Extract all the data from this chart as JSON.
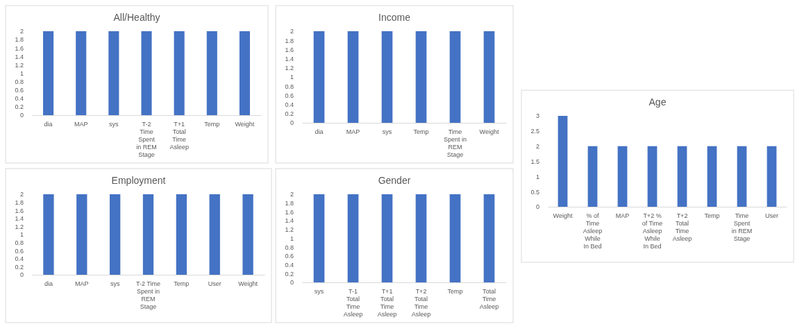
{
  "chart_data": [
    {
      "type": "bar",
      "title": "All/Healthy",
      "categories": [
        "dia",
        "MAP",
        "sys",
        "T-2 Time Spent in REM Stage",
        "T+1 Total Time Asleep",
        "Temp",
        "Weight"
      ],
      "values": [
        2,
        2,
        2,
        2,
        2,
        2,
        2
      ],
      "color": "#4472c4",
      "ylim": [
        0,
        2
      ],
      "yticks": [
        0,
        0.2,
        0.4,
        0.6,
        0.8,
        1,
        1.2,
        1.4,
        1.6,
        1.8,
        2
      ]
    },
    {
      "type": "bar",
      "title": "Income",
      "categories": [
        "dia",
        "MAP",
        "sys",
        "Temp",
        "Time Spent in REM Stage",
        "Weight"
      ],
      "values": [
        2,
        2,
        2,
        2,
        2,
        2
      ],
      "color": "#4472c4",
      "ylim": [
        0,
        2
      ],
      "yticks": [
        0,
        0.2,
        0.4,
        0.6,
        0.8,
        1,
        1.2,
        1.4,
        1.6,
        1.8,
        2
      ]
    },
    {
      "type": "bar",
      "title": "Employment",
      "categories": [
        "dia",
        "MAP",
        "sys",
        "T-2 Time Spent in REM Stage",
        "Temp",
        "User",
        "Weight"
      ],
      "values": [
        2,
        2,
        2,
        2,
        2,
        2,
        2
      ],
      "color": "#4472c4",
      "ylim": [
        0,
        2
      ],
      "yticks": [
        0,
        0.2,
        0.4,
        0.6,
        0.8,
        1,
        1.2,
        1.4,
        1.6,
        1.8,
        2
      ]
    },
    {
      "type": "bar",
      "title": "Gender",
      "categories": [
        "sys",
        "T-1 Total Time Asleep",
        "T+1 Total Time Asleep",
        "T+2 Total Time Asleep",
        "Temp",
        "Total Time Asleep"
      ],
      "values": [
        2,
        2,
        2,
        2,
        2,
        2
      ],
      "color": "#4472c4",
      "ylim": [
        0,
        2
      ],
      "yticks": [
        0,
        0.2,
        0.4,
        0.6,
        0.8,
        1,
        1.2,
        1.4,
        1.6,
        1.8,
        2
      ]
    },
    {
      "type": "bar",
      "title": "Age",
      "categories": [
        "Weight",
        "% of Time Asleep While In Bed",
        "MAP",
        "T+2 % of Time Asleep While In Bed",
        "T+2 Total Time Asleep",
        "Temp",
        "Time Spent in REM Stage",
        "User"
      ],
      "values": [
        3,
        2,
        2,
        2,
        2,
        2,
        2,
        2
      ],
      "color": "#4472c4",
      "ylim": [
        0,
        3
      ],
      "yticks": [
        0,
        0.5,
        1,
        1.5,
        2,
        2.5,
        3
      ]
    }
  ]
}
